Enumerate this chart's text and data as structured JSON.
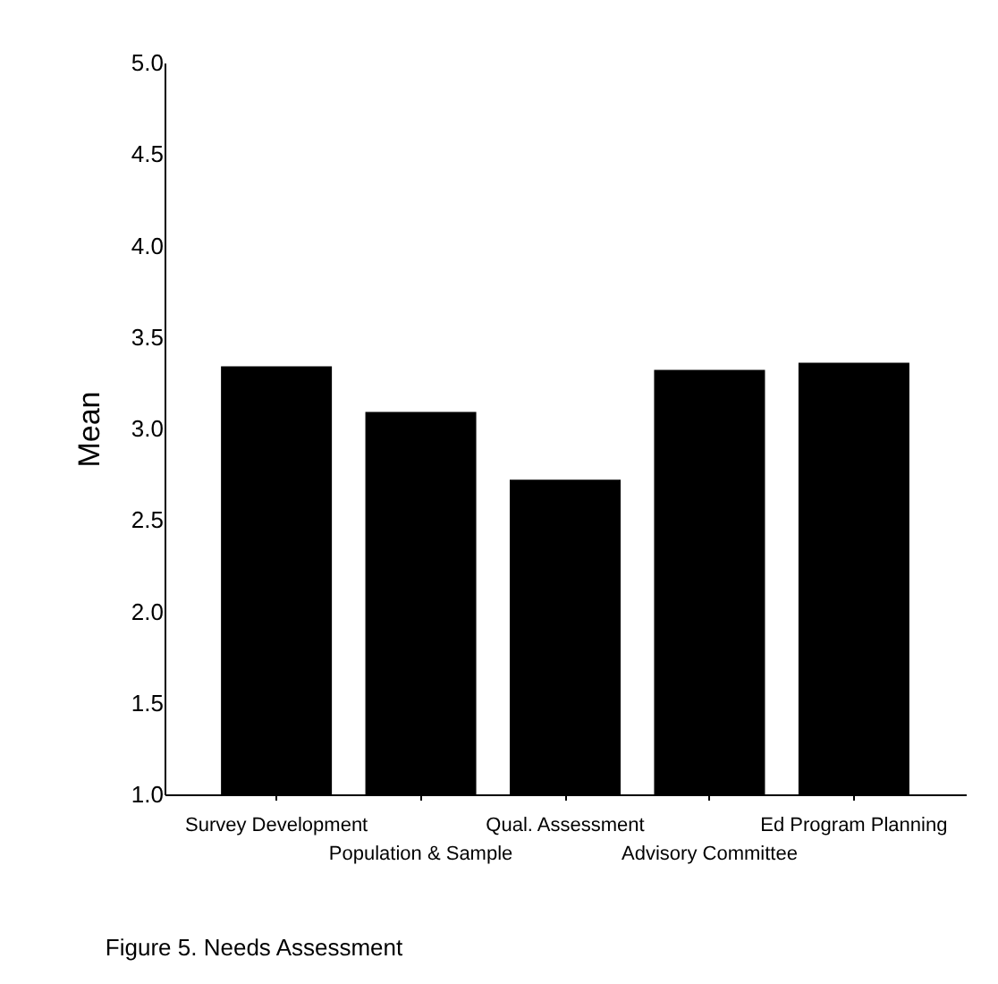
{
  "chart_data": {
    "type": "bar",
    "ylabel": "Mean",
    "categories": [
      "Survey Development",
      "Population & Sample",
      "Qual. Assessment",
      "Advisory Committee",
      "Ed Program Planning"
    ],
    "values": [
      3.34,
      3.09,
      2.72,
      3.32,
      3.36
    ],
    "color": "#000000",
    "ylim": [
      1,
      5
    ],
    "yticks": [
      {
        "value": 1,
        "label": "1.0"
      },
      {
        "value": 1.5,
        "label": "1.5"
      },
      {
        "value": 2,
        "label": "2.0"
      },
      {
        "value": 2.5,
        "label": "2.5"
      },
      {
        "value": 3,
        "label": "3.0"
      },
      {
        "value": 3.5,
        "label": "3.5"
      },
      {
        "value": 4,
        "label": "4.0"
      },
      {
        "value": 4.5,
        "label": "4.5"
      },
      {
        "value": 5,
        "label": "5.0"
      }
    ],
    "grid": false,
    "annotations": [
      "Figure 5.  Needs Assessment"
    ]
  }
}
